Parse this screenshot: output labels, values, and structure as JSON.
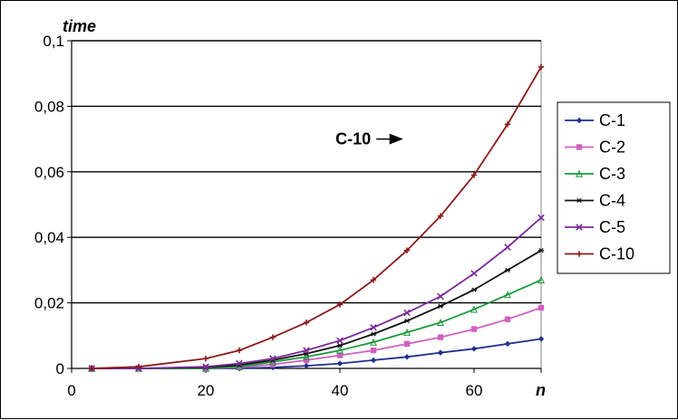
{
  "chart_data": {
    "type": "line",
    "title": "",
    "xlabel": "n",
    "ylabel": "time",
    "xlim": [
      0,
      70
    ],
    "ylim": [
      0,
      0.1
    ],
    "x_ticks": [
      0,
      20,
      40,
      60
    ],
    "x_tick_labels": [
      "0",
      "20",
      "40",
      "60"
    ],
    "y_ticks": [
      0,
      0.02,
      0.04,
      0.06,
      0.08,
      0.1
    ],
    "y_tick_labels": [
      "0",
      "0,02",
      "0,04",
      "0,06",
      "0,08",
      "0,1"
    ],
    "grid": "horizontal",
    "legend_position": "right",
    "x": [
      3,
      10,
      20,
      25,
      30,
      35,
      40,
      45,
      50,
      55,
      60,
      65,
      70
    ],
    "series": [
      {
        "name": "C-1",
        "color": "#1f2f8f",
        "marker": "diamond",
        "values": [
          0,
          0,
          0,
          0,
          0.0003,
          0.0008,
          0.0015,
          0.0025,
          0.0035,
          0.0048,
          0.006,
          0.0075,
          0.009
        ]
      },
      {
        "name": "C-2",
        "color": "#d060c0",
        "marker": "square",
        "values": [
          0,
          0,
          0,
          0.0003,
          0.0012,
          0.0025,
          0.004,
          0.0055,
          0.0075,
          0.0095,
          0.012,
          0.015,
          0.0185
        ]
      },
      {
        "name": "C-3",
        "color": "#1a9a3a",
        "marker": "triangle",
        "values": [
          0,
          0,
          0,
          0.0005,
          0.002,
          0.0035,
          0.0055,
          0.008,
          0.011,
          0.014,
          0.018,
          0.0225,
          0.027
        ]
      },
      {
        "name": "C-4",
        "color": "#111111",
        "marker": "star",
        "values": [
          0,
          0,
          0.0003,
          0.001,
          0.0025,
          0.0045,
          0.007,
          0.0105,
          0.0145,
          0.019,
          0.024,
          0.03,
          0.036
        ]
      },
      {
        "name": "C-5",
        "color": "#7a2a9a",
        "marker": "x",
        "values": [
          0,
          0,
          0.0005,
          0.0015,
          0.003,
          0.0055,
          0.0085,
          0.0125,
          0.017,
          0.022,
          0.029,
          0.037,
          0.046
        ]
      },
      {
        "name": "C-10",
        "color": "#8b1a1a",
        "marker": "plus",
        "values": [
          0,
          0.0005,
          0.003,
          0.0055,
          0.0095,
          0.014,
          0.0195,
          0.027,
          0.036,
          0.0465,
          0.059,
          0.0745,
          0.092
        ]
      }
    ],
    "annotations": [
      {
        "text": "C-10",
        "series": "C-10",
        "arrow": "right",
        "x": 53,
        "y": 0.07
      }
    ]
  }
}
